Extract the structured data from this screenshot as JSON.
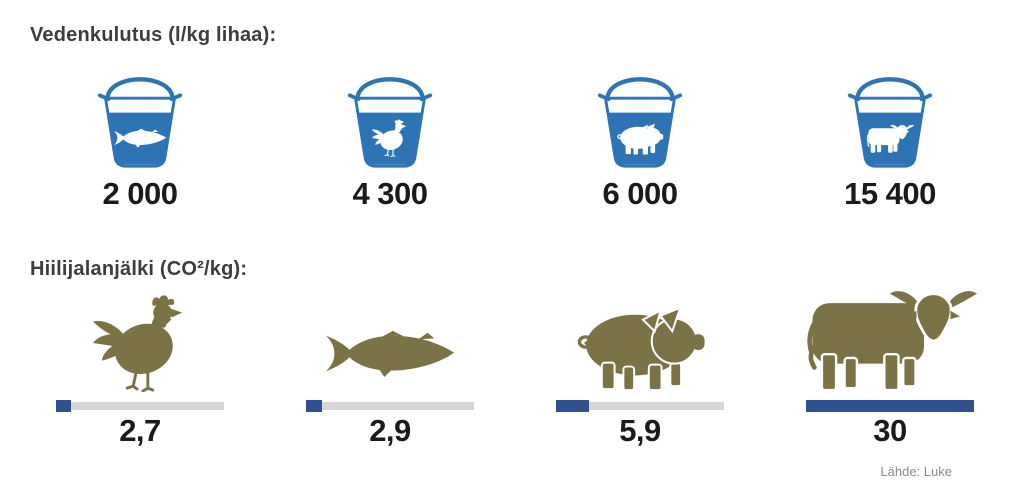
{
  "source": "Lähde: Luke",
  "colors": {
    "bucket_blue": "#2E74B5",
    "animal_olive": "#7B7245",
    "bar_fill_navy": "#30508F",
    "bar_track_gray": "#D6D6D6",
    "title_text": "#3D3D3D",
    "value_text": "#1A1A1A",
    "source_text": "#8C8C8C"
  },
  "water_section": {
    "title": "Vedenkulutus (l/kg lihaa):",
    "items": [
      {
        "animal": "fish",
        "icon": "fish-icon",
        "value": "2 000"
      },
      {
        "animal": "chicken",
        "icon": "chicken-icon",
        "value": "4 300"
      },
      {
        "animal": "pig",
        "icon": "pig-icon",
        "value": "6 000"
      },
      {
        "animal": "cow",
        "icon": "cow-icon",
        "value": "15 400"
      }
    ]
  },
  "carbon_section": {
    "title": "Hiilijalanjälki (CO²/kg):",
    "max": 30,
    "items": [
      {
        "animal": "chicken",
        "icon": "chicken-icon",
        "value": "2,7",
        "numeric": 2.7
      },
      {
        "animal": "fish",
        "icon": "fish-icon",
        "value": "2,9",
        "numeric": 2.9
      },
      {
        "animal": "pig",
        "icon": "pig-icon",
        "value": "5,9",
        "numeric": 5.9
      },
      {
        "animal": "cow",
        "icon": "cow-icon",
        "value": "30",
        "numeric": 30
      }
    ]
  },
  "chart_data": [
    {
      "type": "bar",
      "title": "Vedenkulutus (l/kg lihaa):",
      "categories": [
        "fish",
        "chicken",
        "pig",
        "cow"
      ],
      "values": [
        2000,
        4300,
        6000,
        15400
      ],
      "value_labels": [
        "2 000",
        "4 300",
        "6 000",
        "15 400"
      ],
      "unit": "l/kg lihaa",
      "style": "pictogram-buckets",
      "legend": "none",
      "grid": false
    },
    {
      "type": "bar",
      "title": "Hiilijalanjälki (CO²/kg):",
      "categories": [
        "chicken",
        "fish",
        "pig",
        "cow"
      ],
      "values": [
        2.7,
        2.9,
        5.9,
        30
      ],
      "value_labels": [
        "2,7",
        "2,9",
        "5,9",
        "30"
      ],
      "unit": "CO²/kg",
      "xlim": [
        0,
        30
      ],
      "style": "pictogram-progress-bars",
      "legend": "none",
      "grid": false
    }
  ]
}
